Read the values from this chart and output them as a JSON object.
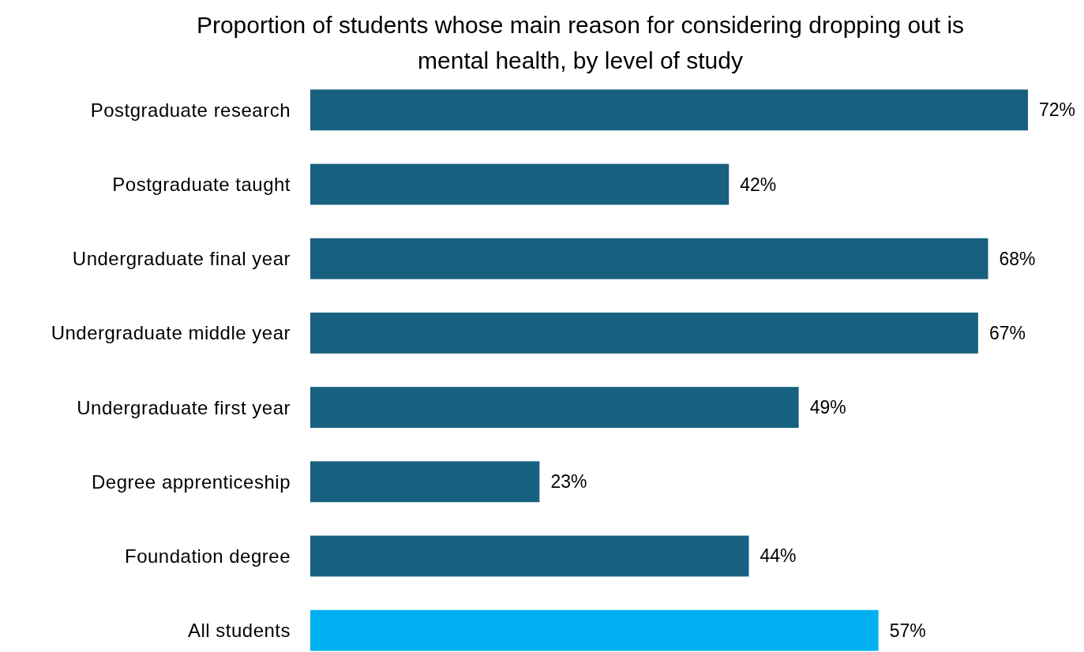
{
  "chart_data": {
    "type": "bar",
    "orientation": "horizontal",
    "title": "Proportion of students whose main reason for considering dropping out is mental health, by level of study",
    "categories": [
      "Postgraduate research",
      "Postgraduate taught",
      "Undergraduate final year",
      "Undergraduate middle year",
      "Undergraduate first year",
      "Degree apprenticeship",
      "Foundation degree",
      "All students"
    ],
    "values": [
      72,
      42,
      68,
      67,
      49,
      23,
      44,
      57
    ],
    "value_labels": [
      "72%",
      "42%",
      "68%",
      "67%",
      "49%",
      "23%",
      "44%",
      "57%"
    ],
    "colors": [
      "#17607f",
      "#17607f",
      "#17607f",
      "#17607f",
      "#17607f",
      "#17607f",
      "#17607f",
      "#00b0f0"
    ]
  }
}
